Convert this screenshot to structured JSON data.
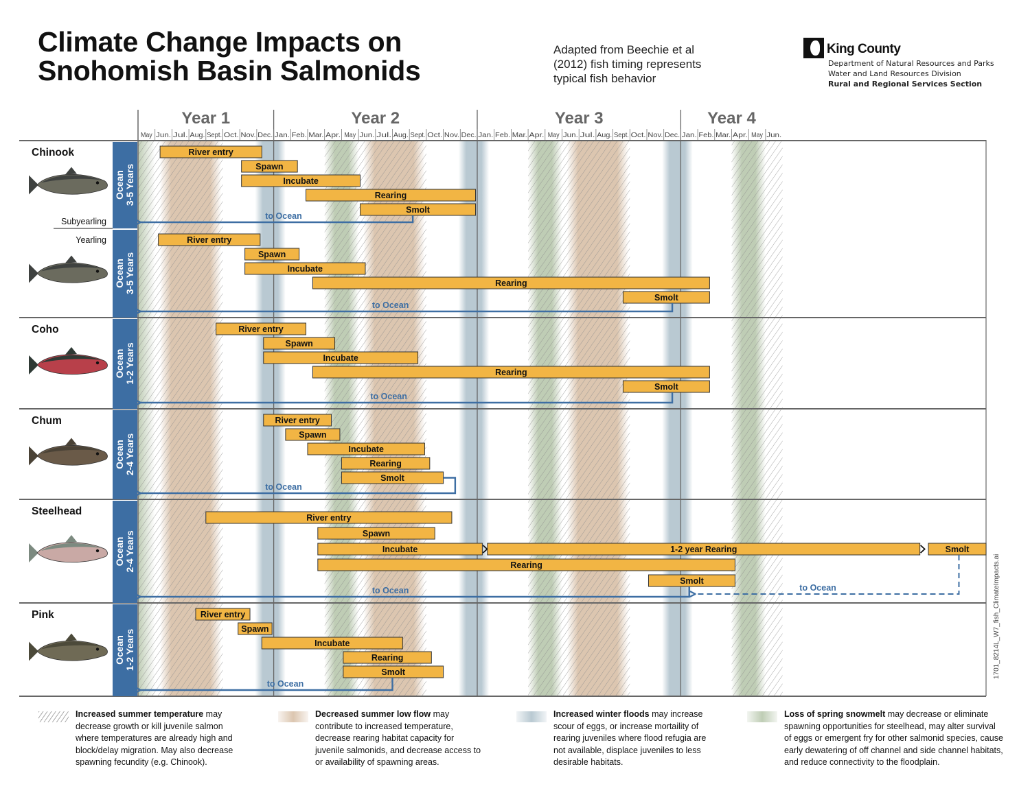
{
  "header": {
    "title_line1": "Climate Change Impacts on",
    "title_line2": "Snohomish Basin Salmonids",
    "subtitle_line1": "Adapted from Beechie et al",
    "subtitle_line2": "(2012) fish timing represents",
    "subtitle_line3": "typical fish behavior",
    "org_name": "King County",
    "org_line1": "Department of Natural Resources and Parks",
    "org_line2": "Water and Land Resources Division",
    "org_line3": "Rural and Regional Services Section"
  },
  "file_id": "1701_8214L_W7_fish_ClimateImpacts.ai",
  "colors": {
    "bar_fill": "#f2b544",
    "bar_stroke": "#333333",
    "ocean_band": "#3d6ea3",
    "arrow": "#3d6ea3",
    "summer_flow": "#dcc6b0",
    "winter_flood": "#b9c9d2",
    "snowmelt": "#bfcdb5",
    "hatch": "#9a9a9a",
    "grid": "#666666"
  },
  "legend": [
    {
      "key": "temp",
      "bold": "Increased summer temperature",
      "text": " may decrease growth or kill juvenile salmon where temperatures are already high and block/delay migration. May also decrease spawning fecundity (e.g. Chinook)."
    },
    {
      "key": "flow",
      "bold": "Decreased summer low flow",
      "text": " may contribute to increased temperature, decrease rearing habitat capacity for juvenile salmonids, and decrease access to or availability of spawning areas."
    },
    {
      "key": "flood",
      "bold": "Increased winter floods",
      "text": " may increase scour of eggs, or increase mortaility of rearing juveniles where flood refugia are not available, displace juveniles to less desirable habitats."
    },
    {
      "key": "snow",
      "bold": "Loss of spring snowmelt",
      "text": " may decrease or eliminate spawning opportunities for steelhead, may alter survival of eggs or emergent fry for other salmonid species, cause early dewatering of off channel and side channel habitats, and reduce connectivity to the floodplain."
    }
  ],
  "chart_data": {
    "type": "gantt",
    "title": "Climate Change Impacts on Snohomish Basin Salmonids",
    "x_unit": "months since start of May, Year 1",
    "x_range": [
      0,
      50
    ],
    "years": [
      {
        "label": "Year 1",
        "start": 0,
        "end": 8
      },
      {
        "label": "Year 2",
        "start": 8,
        "end": 20
      },
      {
        "label": "Year 3",
        "start": 20,
        "end": 32
      },
      {
        "label": "Year 4",
        "start": 32,
        "end": 50
      }
    ],
    "months": [
      "May",
      "Jun.",
      "Jul.",
      "Aug.",
      "Sept.",
      "Oct.",
      "Nov.",
      "Dec.",
      "Jan.",
      "Feb.",
      "Mar.",
      "Apr.",
      "May",
      "Jun.",
      "Jul.",
      "Aug.",
      "Sept.",
      "Oct.",
      "Nov.",
      "Dec.",
      "Jan.",
      "Feb.",
      "Mar.",
      "Apr.",
      "May",
      "Jun.",
      "Jul.",
      "Aug.",
      "Sept.",
      "Oct.",
      "Nov.",
      "Dec.",
      "Jan.",
      "Feb.",
      "Mar.",
      "Apr.",
      "May",
      "Jun."
    ],
    "year_boundaries": [
      8,
      20,
      32
    ],
    "impact_bands": {
      "snowmelt": [
        [
          0,
          1
        ],
        [
          11,
          13
        ],
        [
          23,
          25
        ],
        [
          35,
          37
        ]
      ],
      "summer_flow": [
        [
          1.3,
          4.9
        ],
        [
          13.3,
          16.9
        ],
        [
          25.3,
          28.9
        ]
      ],
      "winter_flood": [
        [
          6.9,
          8.7
        ],
        [
          18.9,
          20.7
        ],
        [
          30.9,
          32.7
        ]
      ],
      "temperature_hatch": [
        [
          0,
          5
        ],
        [
          11,
          17
        ],
        [
          23,
          29
        ],
        [
          35,
          38
        ]
      ]
    },
    "species": [
      {
        "name": "Chinook",
        "fish": "chinook",
        "ocean_line1": "Ocean",
        "ocean_line2": "3-5 Years",
        "subgroups": [
          {
            "label": "Subyearling",
            "label_pos": "bottom",
            "bars": [
              {
                "label": "River entry",
                "start": 1.3,
                "end": 7.3
              },
              {
                "label": "Spawn",
                "start": 6.1,
                "end": 9.4
              },
              {
                "label": "Incubate",
                "start": 6.1,
                "end": 13.1
              },
              {
                "label": "Rearing",
                "start": 9.9,
                "end": 19.9
              },
              {
                "label": "Smolt",
                "start": 13.1,
                "end": 19.9
              }
            ],
            "to_ocean": {
              "label": "to Ocean",
              "from": 16.2,
              "label_at": 7.5
            }
          },
          {
            "label": "Yearling",
            "label_pos": "top",
            "bars": [
              {
                "label": "River entry",
                "start": 1.2,
                "end": 7.2
              },
              {
                "label": "Spawn",
                "start": 6.3,
                "end": 9.5
              },
              {
                "label": "Incubate",
                "start": 6.3,
                "end": 13.4
              },
              {
                "label": "Rearing",
                "start": 10.3,
                "end": 33.7
              },
              {
                "label": "Smolt",
                "start": 28.6,
                "end": 33.7
              }
            ],
            "to_ocean": {
              "label": "to Ocean",
              "from": 31.5,
              "label_at": 13.8
            }
          }
        ]
      },
      {
        "name": "Coho",
        "fish": "coho",
        "ocean_line1": "Ocean",
        "ocean_line2": "1-2 Years",
        "subgroups": [
          {
            "bars": [
              {
                "label": "River entry",
                "start": 4.6,
                "end": 9.9
              },
              {
                "label": "Spawn",
                "start": 7.4,
                "end": 11.6
              },
              {
                "label": "Incubate",
                "start": 7.4,
                "end": 16.5
              },
              {
                "label": "Rearing",
                "start": 10.3,
                "end": 33.7
              },
              {
                "label": "Smolt",
                "start": 28.6,
                "end": 33.7
              }
            ],
            "to_ocean": {
              "label": "to Ocean",
              "from": 31.5,
              "label_at": 13.7
            }
          }
        ]
      },
      {
        "name": "Chum",
        "fish": "chum",
        "ocean_line1": "Ocean",
        "ocean_line2": "2-4 Years",
        "subgroups": [
          {
            "bars": [
              {
                "label": "River entry",
                "start": 7.4,
                "end": 11.4
              },
              {
                "label": "Spawn",
                "start": 8.7,
                "end": 11.9
              },
              {
                "label": "Incubate",
                "start": 10.0,
                "end": 16.9
              },
              {
                "label": "Rearing",
                "start": 12.0,
                "end": 17.2
              },
              {
                "label": "Smolt",
                "start": 12.0,
                "end": 18.0
              }
            ],
            "to_ocean": {
              "label": "to Ocean",
              "from": 18.7,
              "hook": true,
              "label_at": 7.5
            }
          }
        ]
      },
      {
        "name": "Steelhead",
        "fish": "steelhead",
        "ocean_line1": "Ocean",
        "ocean_line2": "2-4 Years",
        "subgroups": [
          {
            "bars": [
              {
                "label": "River entry",
                "start": 4.0,
                "end": 18.5
              },
              {
                "label": "Spawn",
                "start": 10.6,
                "end": 17.5
              },
              {
                "label": "Incubate",
                "start": 10.6,
                "end": 20.3,
                "arrow_end": true
              },
              {
                "label": "1-2 year Rearing",
                "start": 20.6,
                "end": 46.1,
                "arrow_end": true
              },
              {
                "label": "Smolt",
                "start": 46.6,
                "end": 50.0
              },
              {
                "label": "Rearing",
                "start": 10.6,
                "end": 35.2
              },
              {
                "label": "Smolt",
                "start": 30.1,
                "end": 35.2
              }
            ],
            "to_ocean": {
              "label": "to Ocean",
              "from": 32.5,
              "label_at": 13.8
            },
            "dashed_ocean": {
              "label": "to Ocean",
              "from": 48.4,
              "to": 32.7,
              "label_at": 39.0
            }
          }
        ]
      },
      {
        "name": "Pink",
        "fish": "pink",
        "ocean_line1": "Ocean",
        "ocean_line2": "1-2 Years",
        "subgroups": [
          {
            "bars": [
              {
                "label": "River entry",
                "start": 3.4,
                "end": 6.6
              },
              {
                "label": "Spawn",
                "start": 5.9,
                "end": 7.9
              },
              {
                "label": "Incubate",
                "start": 7.3,
                "end": 15.6
              },
              {
                "label": "Rearing",
                "start": 12.1,
                "end": 17.3
              },
              {
                "label": "Smolt",
                "start": 12.1,
                "end": 18.0
              }
            ],
            "to_ocean": {
              "label": "to Ocean",
              "from": 15.0,
              "label_at": 7.6
            }
          }
        ]
      }
    ]
  }
}
